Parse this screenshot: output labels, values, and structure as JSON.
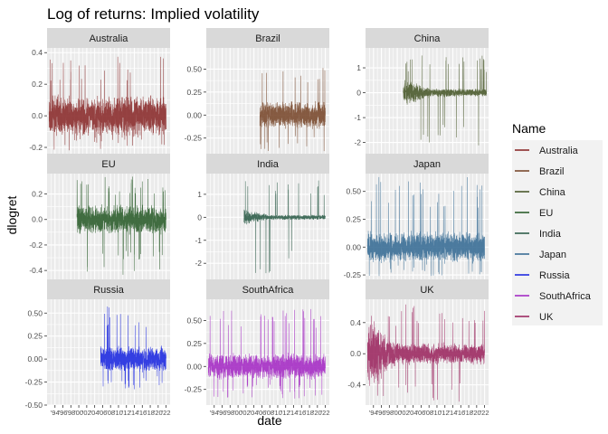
{
  "chart_data": {
    "type": "line",
    "title": "Log of returns: Implied volatility",
    "xlabel": "date",
    "ylabel": "dlogret",
    "facet_layout": "3x3",
    "scales": "free_y",
    "grid": true,
    "legend": {
      "title": "Name",
      "placement": "right",
      "entries": [
        "Australia",
        "Brazil",
        "China",
        "EU",
        "India",
        "Japan",
        "Russia",
        "SouthAfrica",
        "UK"
      ]
    },
    "x_range": [
      1992,
      2023
    ],
    "x_ticks": [
      "'94",
      "'96",
      "'98",
      "'00",
      "'02",
      "'04",
      "'06",
      "'08",
      "'10",
      "'12",
      "'14",
      "'16",
      "'18",
      "'20",
      "'22"
    ],
    "x_tick_years": [
      1994,
      1996,
      1998,
      2000,
      2002,
      2004,
      2006,
      2008,
      2010,
      2012,
      2014,
      2016,
      2018,
      2020,
      2022
    ],
    "panels": [
      {
        "name": "Australia",
        "color": "#8b2d2d",
        "start": 1992.5,
        "end": 2022.0,
        "ylim": [
          -0.24,
          0.43
        ],
        "yticks": [
          -0.2,
          0.0,
          0.2,
          0.4
        ],
        "ytick_labels": [
          "-0.2",
          "0.0",
          "0.2",
          "0.4"
        ],
        "spread": 0.09,
        "peak": 0.38,
        "trough": -0.22,
        "burst_start": 0.0,
        "burst_len": 0.0
      },
      {
        "name": "Brazil",
        "color": "#7a4a2f",
        "start": 2005.5,
        "end": 2022.0,
        "ylim": [
          -0.42,
          0.73
        ],
        "yticks": [
          -0.25,
          0.0,
          0.25,
          0.5
        ],
        "ytick_labels": [
          "-0.25",
          "0.00",
          "0.25",
          "0.50"
        ],
        "spread": 0.11,
        "peak": 0.62,
        "trough": -0.4,
        "burst_start": 0.0,
        "burst_len": 0.0
      },
      {
        "name": "China",
        "color": "#4a5a2c",
        "start": 2001.5,
        "end": 2022.5,
        "ylim": [
          -2.45,
          1.8
        ],
        "yticks": [
          -2,
          -1,
          0,
          1
        ],
        "ytick_labels": [
          "-2",
          "-1",
          "0",
          "1"
        ],
        "spread": 0.12,
        "peak": 1.5,
        "trough": -2.3,
        "burst_start": 0.0,
        "burst_len": 0.35
      },
      {
        "name": "EU",
        "color": "#2d5e2d",
        "start": 1999.5,
        "end": 2022.0,
        "ylim": [
          -0.47,
          0.36
        ],
        "yticks": [
          -0.4,
          -0.2,
          0.0,
          0.2
        ],
        "ytick_labels": [
          "-0.4",
          "-0.2",
          "0.0",
          "0.2"
        ],
        "spread": 0.08,
        "peak": 0.34,
        "trough": -0.44,
        "burst_start": 0.0,
        "burst_len": 0.0
      },
      {
        "name": "India",
        "color": "#2f5e4a",
        "start": 2001.5,
        "end": 2022.0,
        "ylim": [
          -2.7,
          1.9
        ],
        "yticks": [
          -2,
          -1,
          0,
          1
        ],
        "ytick_labels": [
          "-2",
          "-1",
          "0",
          "1"
        ],
        "spread": 0.08,
        "peak": 1.6,
        "trough": -2.5,
        "burst_start": 0.0,
        "burst_len": 0.3
      },
      {
        "name": "Japan",
        "color": "#3a6e96",
        "start": 1992.5,
        "end": 2022.0,
        "ylim": [
          -0.29,
          0.66
        ],
        "yticks": [
          -0.25,
          0.0,
          0.25,
          0.5
        ],
        "ytick_labels": [
          "-0.25",
          "0.00",
          "0.25",
          "0.50"
        ],
        "spread": 0.1,
        "peak": 0.63,
        "trough": -0.26,
        "burst_start": 0.0,
        "burst_len": 0.0
      },
      {
        "name": "Russia",
        "color": "#1f2be0",
        "start": 2005.5,
        "end": 2022.0,
        "ylim": [
          -0.5,
          0.65
        ],
        "yticks": [
          -0.5,
          -0.25,
          0.0,
          0.25,
          0.5
        ],
        "ytick_labels": [
          "-0.50",
          "-0.25",
          "0.00",
          "0.25",
          "0.50"
        ],
        "spread": 0.1,
        "peak": 0.58,
        "trough": -0.33,
        "burst_start": 0.0,
        "burst_len": 0.0
      },
      {
        "name": "SouthAfrica",
        "color": "#a52dc4",
        "start": 1992.5,
        "end": 2022.0,
        "ylim": [
          -0.42,
          0.73
        ],
        "yticks": [
          -0.25,
          0.0,
          0.25,
          0.5
        ],
        "ytick_labels": [
          "-0.25",
          "0.00",
          "0.25",
          "0.50"
        ],
        "spread": 0.1,
        "peak": 0.68,
        "trough": -0.35,
        "burst_start": 0.0,
        "burst_len": 0.0
      },
      {
        "name": "UK",
        "color": "#9c2a62",
        "start": 1992.5,
        "end": 2022.0,
        "ylim": [
          -0.66,
          0.7
        ],
        "yticks": [
          -0.4,
          0.0,
          0.4
        ],
        "ytick_labels": [
          "-0.4",
          "0.0",
          "0.4"
        ],
        "spread": 0.1,
        "peak": 0.65,
        "trough": -0.62,
        "burst_start": 0.0,
        "burst_len": 0.25
      }
    ]
  }
}
